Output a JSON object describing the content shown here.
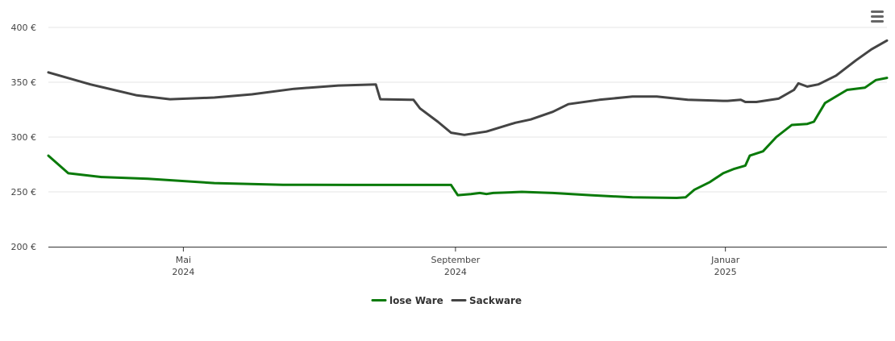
{
  "chart_data": {
    "type": "line",
    "y_axis": {
      "range": [
        200,
        400
      ],
      "ticks": [
        {
          "value": 200,
          "label": "200 €"
        },
        {
          "value": 250,
          "label": "250 €"
        },
        {
          "value": 300,
          "label": "300 €"
        },
        {
          "value": 350,
          "label": "350 €"
        },
        {
          "value": 400,
          "label": "400 €"
        }
      ],
      "grid": true
    },
    "x_axis": {
      "range": [
        "2024-03-01",
        "2025-03-15"
      ],
      "ticks": [
        {
          "date": "2024-05-01",
          "month": "Mai",
          "year": "2024"
        },
        {
          "date": "2024-09-01",
          "month": "September",
          "year": "2024"
        },
        {
          "date": "2025-01-01",
          "month": "Januar",
          "year": "2025"
        }
      ]
    },
    "legend_position": "bottom-center",
    "series": [
      {
        "name": "lose Ware",
        "color": "#0a7a0a",
        "points": [
          [
            "2024-03-01",
            283
          ],
          [
            "2024-03-05",
            273
          ],
          [
            "2024-03-05",
            273
          ],
          [
            "2024-03-05",
            273
          ],
          [
            "2024-03-05",
            273
          ],
          [
            "2024-03-05",
            273
          ],
          [
            "2024-03-05",
            273
          ],
          [
            "2024-03-05",
            273
          ],
          [
            "2024-03-05",
            273
          ],
          [
            "2024-03-05",
            273
          ],
          [
            "2024-03-05",
            273
          ],
          [
            "2024-03-05",
            273
          ],
          [
            "2024-03-05",
            273
          ],
          [
            "2024-03-05",
            273
          ],
          [
            "2024-03-05",
            273
          ],
          [
            "2024-03-05",
            273
          ],
          [
            "2024-03-05",
            273
          ],
          [
            "2024-03-05",
            273
          ],
          [
            "2024-03-05",
            273
          ],
          [
            "2024-03-05",
            273
          ],
          [
            "2024-03-05",
            273
          ],
          [
            "2024-03-05",
            273
          ],
          [
            "2024-03-05",
            273
          ],
          [
            "2024-03-05",
            273
          ],
          [
            "2024-03-05",
            273
          ],
          [
            "2024-03-05",
            273
          ],
          [
            "2024-03-05",
            273
          ],
          [
            "2024-03-05",
            273
          ],
          [
            "2024-03-05",
            273
          ],
          [
            "2024-03-05",
            273
          ],
          [
            "2024-03-05",
            273
          ]
        ]
      }
    ]
  },
  "legend": {
    "items": [
      {
        "label": "lose Ware",
        "color": "#0a7a0a"
      },
      {
        "label": "Sackware",
        "color": "#444444"
      }
    ]
  },
  "menu": {
    "icon": "hamburger-menu-icon"
  }
}
